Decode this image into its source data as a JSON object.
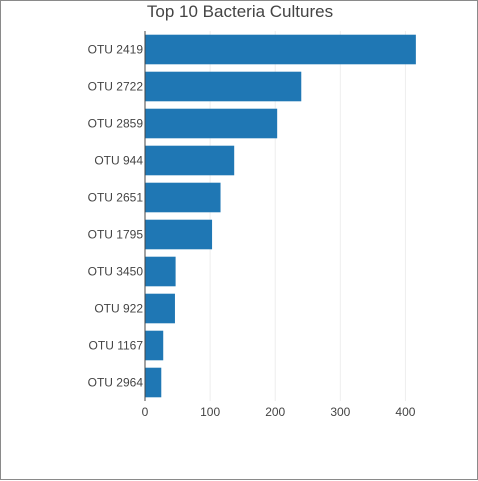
{
  "chart_data": {
    "type": "bar",
    "orientation": "horizontal",
    "title": "Top 10 Bacteria Cultures",
    "xlabel": "",
    "ylabel": "",
    "categories": [
      "OTU 2419",
      "OTU 2722",
      "OTU 2859",
      "OTU 944",
      "OTU 2651",
      "OTU 1795",
      "OTU 3450",
      "OTU 922",
      "OTU 1167",
      "OTU 2964"
    ],
    "values": [
      416,
      240,
      203,
      137,
      116,
      103,
      47,
      46,
      28,
      25
    ],
    "xlim": [
      0,
      450
    ],
    "xticks": [
      0,
      100,
      200,
      300,
      400
    ],
    "grid": "vertical",
    "bar_color": "#1f77b4"
  }
}
